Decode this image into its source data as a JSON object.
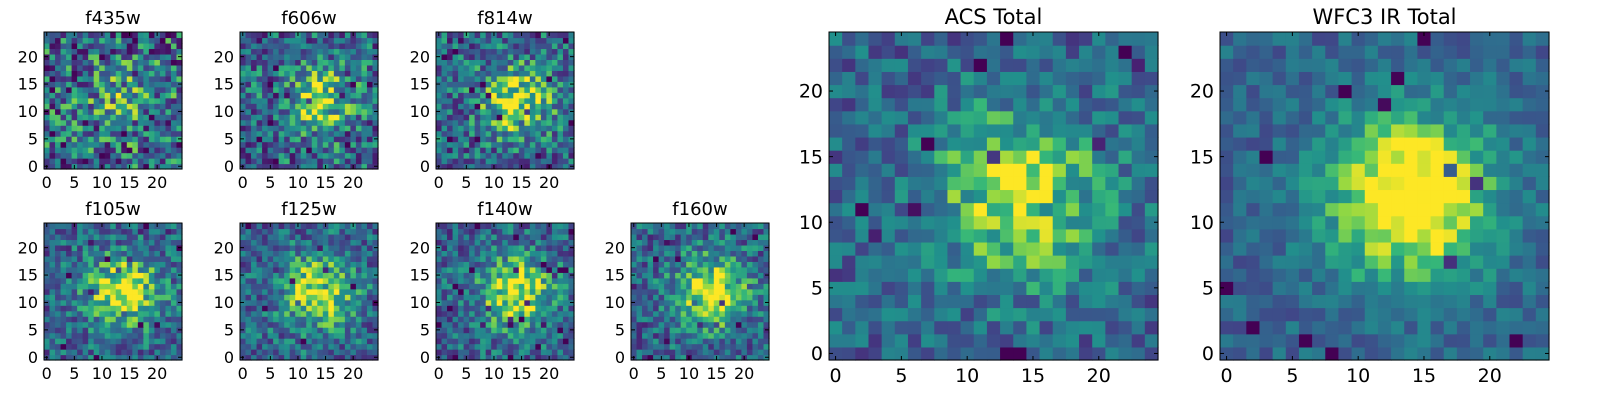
{
  "chart_data": [
    {
      "type": "heatmap",
      "title": "f435w",
      "xticks": [
        "0",
        "5",
        "10",
        "15",
        "20"
      ],
      "yticks": [
        "0",
        "5",
        "10",
        "15",
        "20"
      ],
      "xlim": [
        0,
        25
      ],
      "ylim": [
        0,
        25
      ],
      "colormap": "viridis",
      "grid": false,
      "seed": 11,
      "peak": 0.25,
      "noise": 0.85
    },
    {
      "type": "heatmap",
      "title": "f606w",
      "xticks": [
        "0",
        "5",
        "10",
        "15",
        "20"
      ],
      "yticks": [
        "0",
        "5",
        "10",
        "15",
        "20"
      ],
      "xlim": [
        0,
        25
      ],
      "ylim": [
        0,
        25
      ],
      "colormap": "viridis",
      "grid": false,
      "seed": 23,
      "peak": 0.45,
      "noise": 0.7
    },
    {
      "type": "heatmap",
      "title": "f814w",
      "xticks": [
        "0",
        "5",
        "10",
        "15",
        "20"
      ],
      "yticks": [
        "0",
        "5",
        "10",
        "15",
        "20"
      ],
      "xlim": [
        0,
        25
      ],
      "ylim": [
        0,
        25
      ],
      "colormap": "viridis",
      "grid": false,
      "seed": 37,
      "peak": 0.55,
      "noise": 0.65
    },
    {
      "type": "heatmap",
      "title": "f105w",
      "xticks": [
        "0",
        "5",
        "10",
        "15",
        "20"
      ],
      "yticks": [
        "0",
        "5",
        "10",
        "15",
        "20"
      ],
      "xlim": [
        0,
        25
      ],
      "ylim": [
        0,
        25
      ],
      "colormap": "viridis",
      "grid": false,
      "seed": 41,
      "peak": 0.6,
      "noise": 0.55
    },
    {
      "type": "heatmap",
      "title": "f125w",
      "xticks": [
        "0",
        "5",
        "10",
        "15",
        "20"
      ],
      "yticks": [
        "0",
        "5",
        "10",
        "15",
        "20"
      ],
      "xlim": [
        0,
        25
      ],
      "ylim": [
        0,
        25
      ],
      "colormap": "viridis",
      "grid": false,
      "seed": 53,
      "peak": 0.6,
      "noise": 0.55
    },
    {
      "type": "heatmap",
      "title": "f140w",
      "xticks": [
        "0",
        "5",
        "10",
        "15",
        "20"
      ],
      "yticks": [
        "0",
        "5",
        "10",
        "15",
        "20"
      ],
      "xlim": [
        0,
        25
      ],
      "ylim": [
        0,
        25
      ],
      "colormap": "viridis",
      "grid": false,
      "seed": 67,
      "peak": 0.6,
      "noise": 0.55
    },
    {
      "type": "heatmap",
      "title": "f160w",
      "xticks": [
        "0",
        "5",
        "10",
        "15",
        "20"
      ],
      "yticks": [
        "0",
        "5",
        "10",
        "15",
        "20"
      ],
      "xlim": [
        0,
        25
      ],
      "ylim": [
        0,
        25
      ],
      "colormap": "viridis",
      "grid": false,
      "seed": 79,
      "peak": 0.6,
      "noise": 0.55
    },
    {
      "type": "heatmap",
      "title": "ACS Total",
      "xticks": [
        "0",
        "5",
        "10",
        "15",
        "20"
      ],
      "yticks": [
        "0",
        "5",
        "10",
        "15",
        "20"
      ],
      "xlim": [
        0,
        25
      ],
      "ylim": [
        0,
        25
      ],
      "colormap": "viridis",
      "grid": false,
      "seed": 97,
      "peak": 0.55,
      "noise": 0.45
    },
    {
      "type": "heatmap",
      "title": "WFC3 IR Total",
      "xticks": [
        "0",
        "5",
        "10",
        "15",
        "20"
      ],
      "yticks": [
        "0",
        "5",
        "10",
        "15",
        "20"
      ],
      "xlim": [
        0,
        25
      ],
      "ylim": [
        0,
        25
      ],
      "colormap": "viridis",
      "grid": false,
      "seed": 113,
      "peak": 0.75,
      "noise": 0.3
    }
  ]
}
